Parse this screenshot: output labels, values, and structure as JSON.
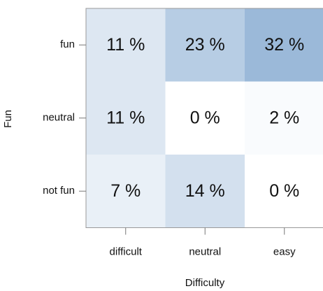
{
  "chart_data": {
    "type": "heatmap",
    "x_label": "Difficulty",
    "y_label": "Fun",
    "categories": [
      "difficult",
      "neutral",
      "easy"
    ],
    "rows": [
      "fun",
      "neutral",
      "not fun"
    ],
    "values": [
      [
        11,
        23,
        32
      ],
      [
        11,
        0,
        2
      ],
      [
        7,
        14,
        0
      ]
    ],
    "value_labels": [
      [
        "11 %",
        "23 %",
        "32 %"
      ],
      [
        "11 %",
        "0 %",
        "2 %"
      ],
      [
        "7 %",
        "14 %",
        "0 %"
      ]
    ],
    "color_low": "#ffffff",
    "color_high": "#9bb9d9"
  }
}
